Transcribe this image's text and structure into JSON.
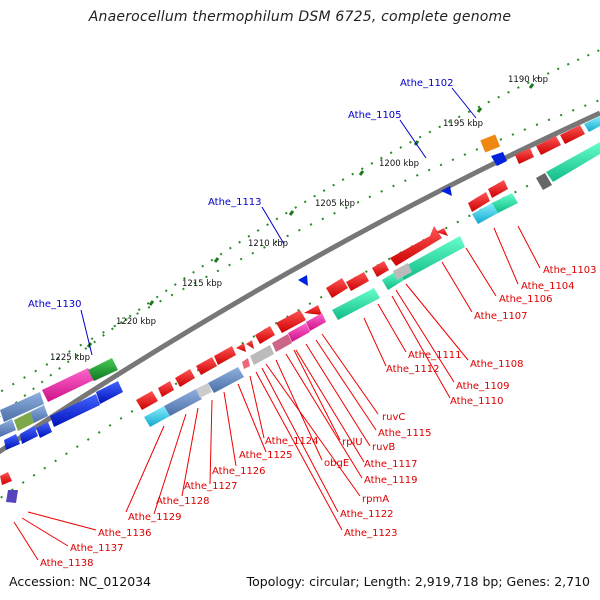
{
  "title": "Anaerocellum thermophilum DSM 6725, complete genome",
  "footer": {
    "accession": "Accession: NC_012034",
    "summary": "Topology: circular; Length: 2,919,718 bp; Genes: 2,710"
  },
  "colors": {
    "backbone": "#808080",
    "forward_strand_tick": "#1a7a1a",
    "reverse_strand_tick": "#1a7a1a",
    "callout_line_blue": "#0000cc",
    "callout_text_blue": "#0000cc",
    "callout_line_red": "#ee0000",
    "callout_text_red": "#dd0000",
    "gene_red": "#ee1111",
    "gene_blue": "#1133dd",
    "gene_steel": "#6c8ebf",
    "gene_cyan": "#22ccee",
    "gene_green": "#1a9a3a",
    "gene_magenta": "#ee2299",
    "gene_orange": "#ee8811",
    "gene_aquagreen": "#22ddaa",
    "gene_grey": "#bbbbbb"
  },
  "scale_labels": [
    "1190 kbp",
    "1195 kbp",
    "1200 kbp",
    "1205 kbp",
    "1210 kbp",
    "1215 kbp",
    "1220 kbp",
    "1225 kbp"
  ],
  "blue_labels": [
    "Athe_1102",
    "Athe_1105",
    "Athe_1113",
    "Athe_1130"
  ],
  "red_labels": [
    "Athe_1103",
    "Athe_1104",
    "Athe_1106",
    "Athe_1107",
    "Athe_1108",
    "Athe_1109",
    "Athe_1110",
    "Athe_1111",
    "Athe_1112",
    "ruvC",
    "Athe_1115",
    "ruvB",
    "Athe_1117",
    "rplU",
    "Athe_1119",
    "obgE",
    "rpmA",
    "Athe_1122",
    "Athe_1123",
    "Athe_1124",
    "Athe_1125",
    "Athe_1126",
    "Athe_1127",
    "Athe_1128",
    "Athe_1129",
    "Athe_1136",
    "Athe_1137",
    "Athe_1138"
  ]
}
